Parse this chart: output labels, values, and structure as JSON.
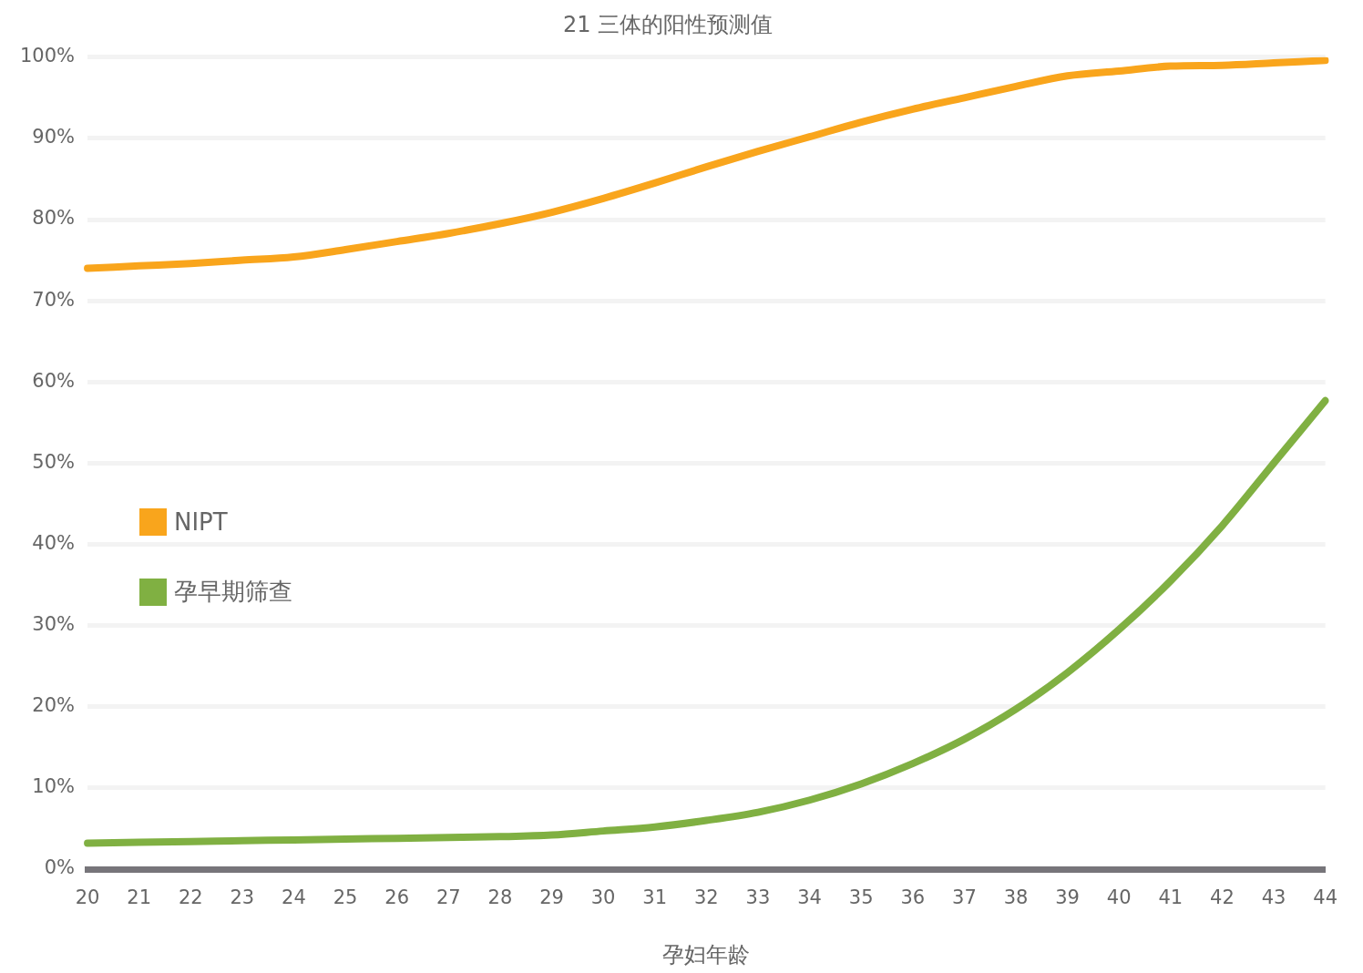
{
  "chart_data": {
    "type": "line",
    "title": "21 三体的阳性预测值",
    "xlabel": "孕妇年龄",
    "categories": [
      "20",
      "21",
      "22",
      "23",
      "24",
      "25",
      "26",
      "27",
      "28",
      "29",
      "30",
      "31",
      "32",
      "33",
      "34",
      "35",
      "36",
      "37",
      "38",
      "39",
      "40",
      "41",
      "42",
      "43",
      "44"
    ],
    "series": [
      {
        "name": "NIPT",
        "color": "#f9a51c",
        "values": [
          74,
          74.3,
          74.6,
          75,
          75.4,
          76.3,
          77.3,
          78.3,
          79.5,
          80.9,
          82.6,
          84.5,
          86.5,
          88.4,
          90.2,
          92,
          93.6,
          95,
          96.4,
          97.7,
          98.3,
          98.9,
          99,
          99.3,
          99.6
        ]
      },
      {
        "name": "孕早期筛查",
        "color": "#80b042",
        "values": [
          3.2,
          3.3,
          3.4,
          3.5,
          3.6,
          3.7,
          3.8,
          3.9,
          4,
          4.2,
          4.7,
          5.2,
          6,
          7,
          8.5,
          10.5,
          13,
          16,
          19.7,
          24.2,
          29.5,
          35.5,
          42.3,
          50,
          57.7
        ]
      }
    ],
    "ylim": [
      0,
      100
    ],
    "yticks": [
      {
        "value": 0,
        "label": "0%"
      },
      {
        "value": 10,
        "label": "10%"
      },
      {
        "value": 20,
        "label": "20%"
      },
      {
        "value": 30,
        "label": "30%"
      },
      {
        "value": 40,
        "label": "40%"
      },
      {
        "value": 50,
        "label": "50%"
      },
      {
        "value": 60,
        "label": "60%"
      },
      {
        "value": 70,
        "label": "70%"
      },
      {
        "value": 80,
        "label": "80%"
      },
      {
        "value": 90,
        "label": "90%"
      },
      {
        "value": 100,
        "label": "100%"
      }
    ],
    "grid": "y",
    "legend": "left",
    "marker": "none",
    "line_style": "solid"
  }
}
